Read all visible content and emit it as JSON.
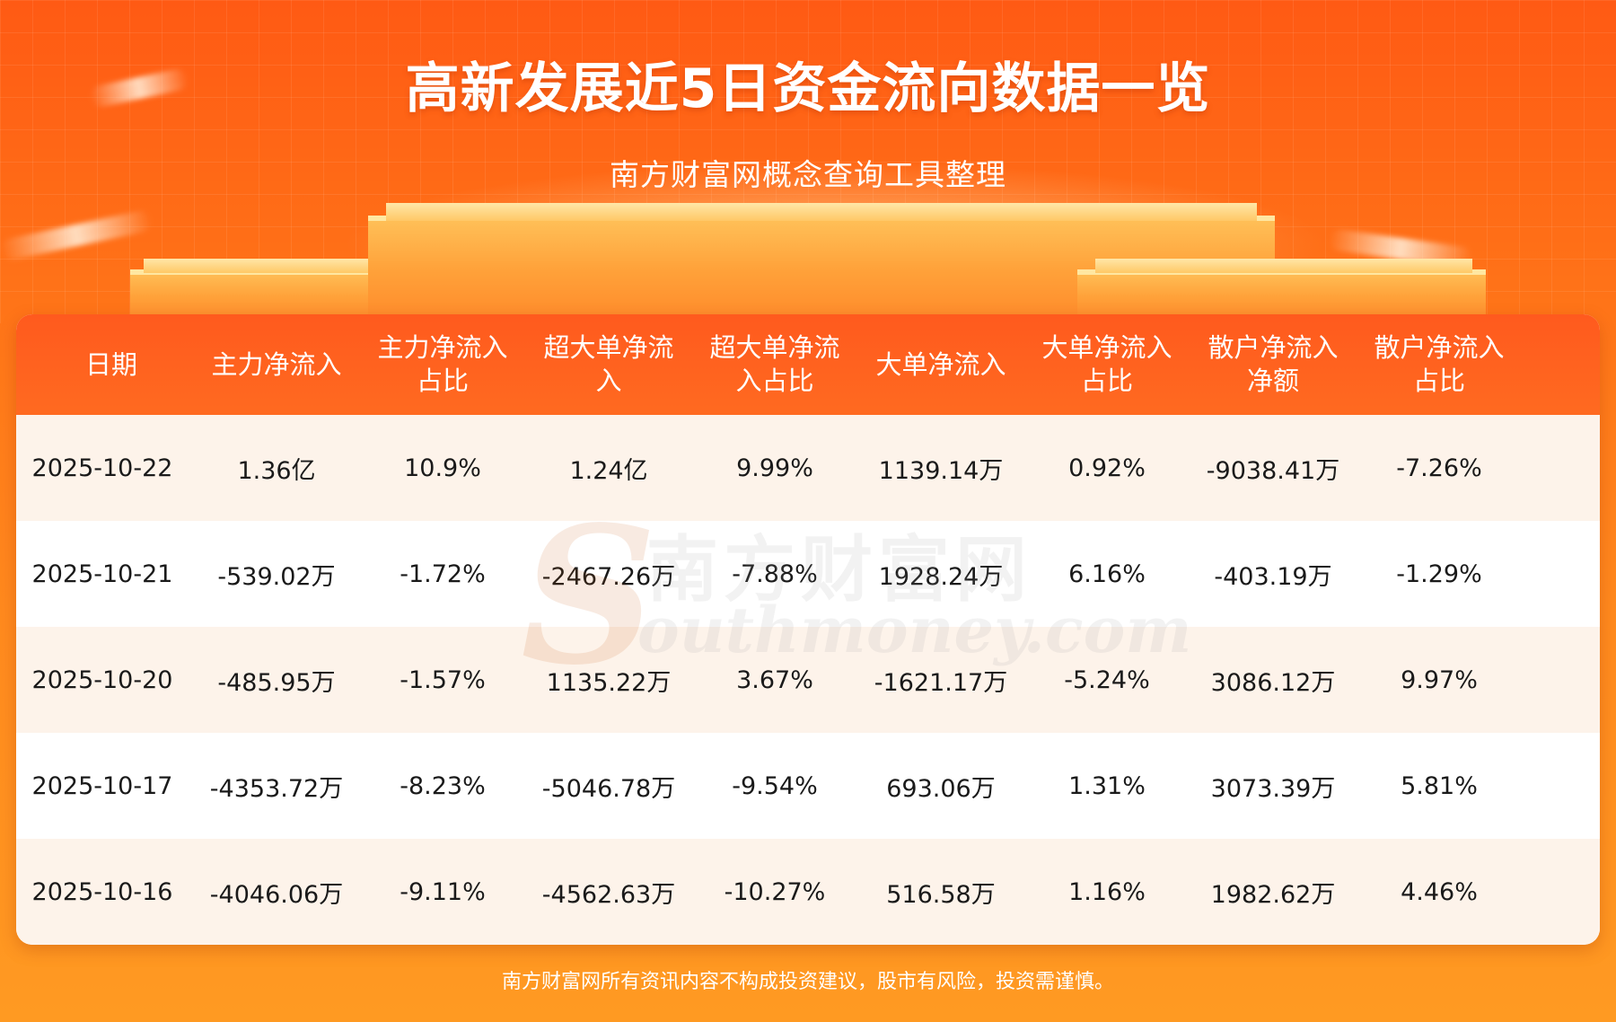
{
  "title": "高新发展近5日资金流向数据一览",
  "subtitle": "南方财富网概念查询工具整理",
  "watermark": {
    "cn": "南方财富网",
    "en": "outhmoney.com",
    "s": "S"
  },
  "table": {
    "headers": [
      "日期",
      "主力净流入",
      "主力净流入\n占比",
      "超大单净流\n入",
      "超大单净流\n入占比",
      "大单净流入",
      "大单净流入\n占比",
      "散户净流入\n净额",
      "散户净流入\n占比"
    ],
    "rows": [
      [
        "2025-10-22",
        "1.36亿",
        "10.9%",
        "1.24亿",
        "9.99%",
        "1139.14万",
        "0.92%",
        "-9038.41万",
        "-7.26%"
      ],
      [
        "2025-10-21",
        "-539.02万",
        "-1.72%",
        "-2467.26万",
        "-7.88%",
        "1928.24万",
        "6.16%",
        "-403.19万",
        "-1.29%"
      ],
      [
        "2025-10-20",
        "-485.95万",
        "-1.57%",
        "1135.22万",
        "3.67%",
        "-1621.17万",
        "-5.24%",
        "3086.12万",
        "9.97%"
      ],
      [
        "2025-10-17",
        "-4353.72万",
        "-8.23%",
        "-5046.78万",
        "-9.54%",
        "693.06万",
        "1.31%",
        "3073.39万",
        "5.81%"
      ],
      [
        "2025-10-16",
        "-4046.06万",
        "-9.11%",
        "-4562.63万",
        "-10.27%",
        "516.58万",
        "1.16%",
        "1982.62万",
        "4.46%"
      ]
    ]
  },
  "footer": "南方财富网所有资讯内容不构成投资建议，股市有风险，投资需谨慎。"
}
